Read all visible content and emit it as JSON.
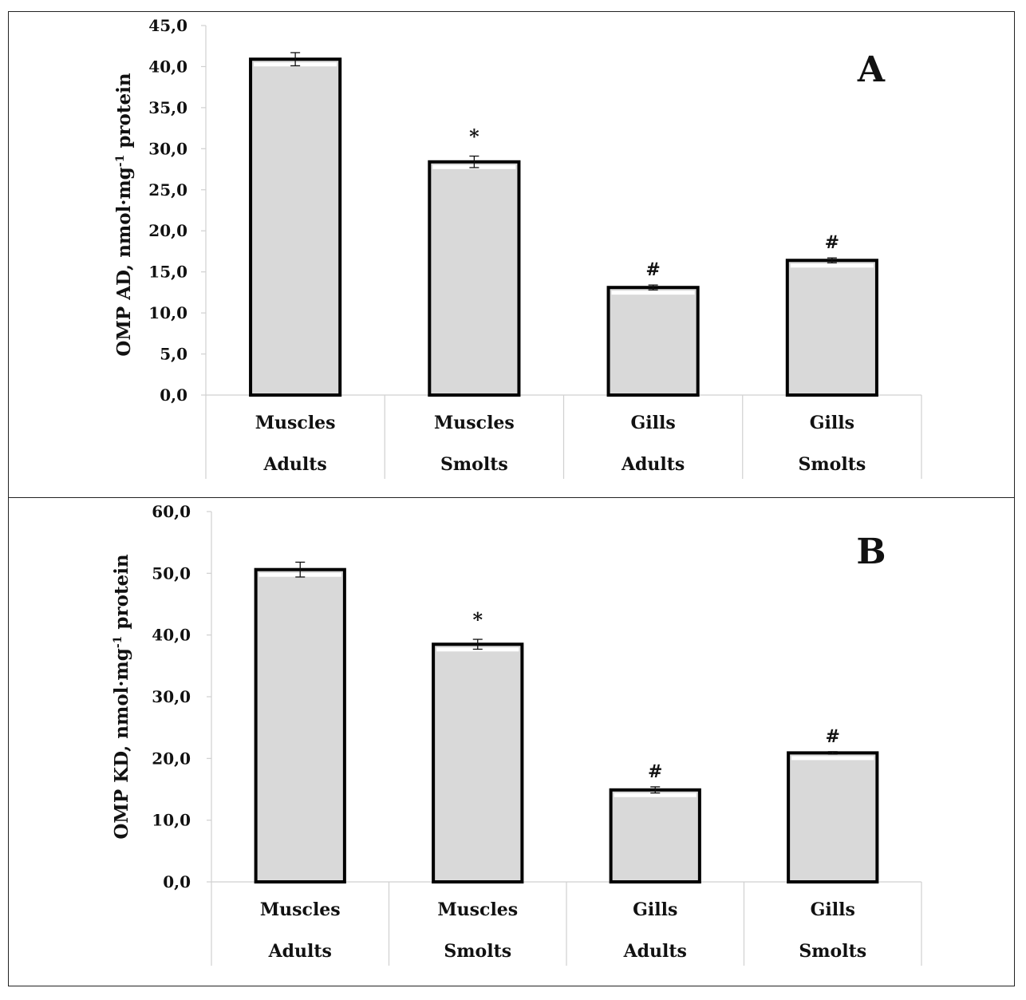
{
  "chart_data": [
    {
      "type": "bar",
      "panel_label": "A",
      "ylabel": {
        "main": "OMP AD, nmol·mg",
        "sup": "-1",
        "tail": " protein"
      },
      "ylim": [
        0,
        45
      ],
      "ytick_step": 5,
      "ytick_labels": [
        "0,0",
        "5,0",
        "10,0",
        "15,0",
        "20,0",
        "25,0",
        "30,0",
        "35,0",
        "40,0",
        "45,0"
      ],
      "categories": [
        {
          "tissue": "Muscles",
          "group": "Adults"
        },
        {
          "tissue": "Muscles",
          "group": "Smolts"
        },
        {
          "tissue": "Gills",
          "group": "Adults"
        },
        {
          "tissue": "Gills",
          "group": "Smolts"
        }
      ],
      "values": [
        40.9,
        28.4,
        13.1,
        16.4
      ],
      "errors": [
        0.8,
        0.7,
        0.3,
        0.3
      ],
      "annotations": [
        "",
        "*",
        "#",
        "#"
      ],
      "grid": false
    },
    {
      "type": "bar",
      "panel_label": "B",
      "ylabel": {
        "main": "OMP KD, nmol·mg",
        "sup": "-1",
        "tail": " protein"
      },
      "ylim": [
        0,
        60
      ],
      "ytick_step": 10,
      "ytick_labels": [
        "0,0",
        "10,0",
        "20,0",
        "30,0",
        "40,0",
        "50,0",
        "60,0"
      ],
      "categories": [
        {
          "tissue": "Muscles",
          "group": "Adults"
        },
        {
          "tissue": "Muscles",
          "group": "Smolts"
        },
        {
          "tissue": "Gills",
          "group": "Adults"
        },
        {
          "tissue": "Gills",
          "group": "Smolts"
        }
      ],
      "values": [
        50.6,
        38.5,
        14.9,
        20.9
      ],
      "errors": [
        1.2,
        0.8,
        0.5,
        0.2
      ],
      "annotations": [
        "",
        "*",
        "#",
        "#"
      ],
      "grid": false
    }
  ],
  "colors": {
    "bar_fill": "#d9d9d9",
    "bar_stroke": "#000000",
    "highlight": "#ffffff",
    "axis": "#d0d0d0"
  }
}
